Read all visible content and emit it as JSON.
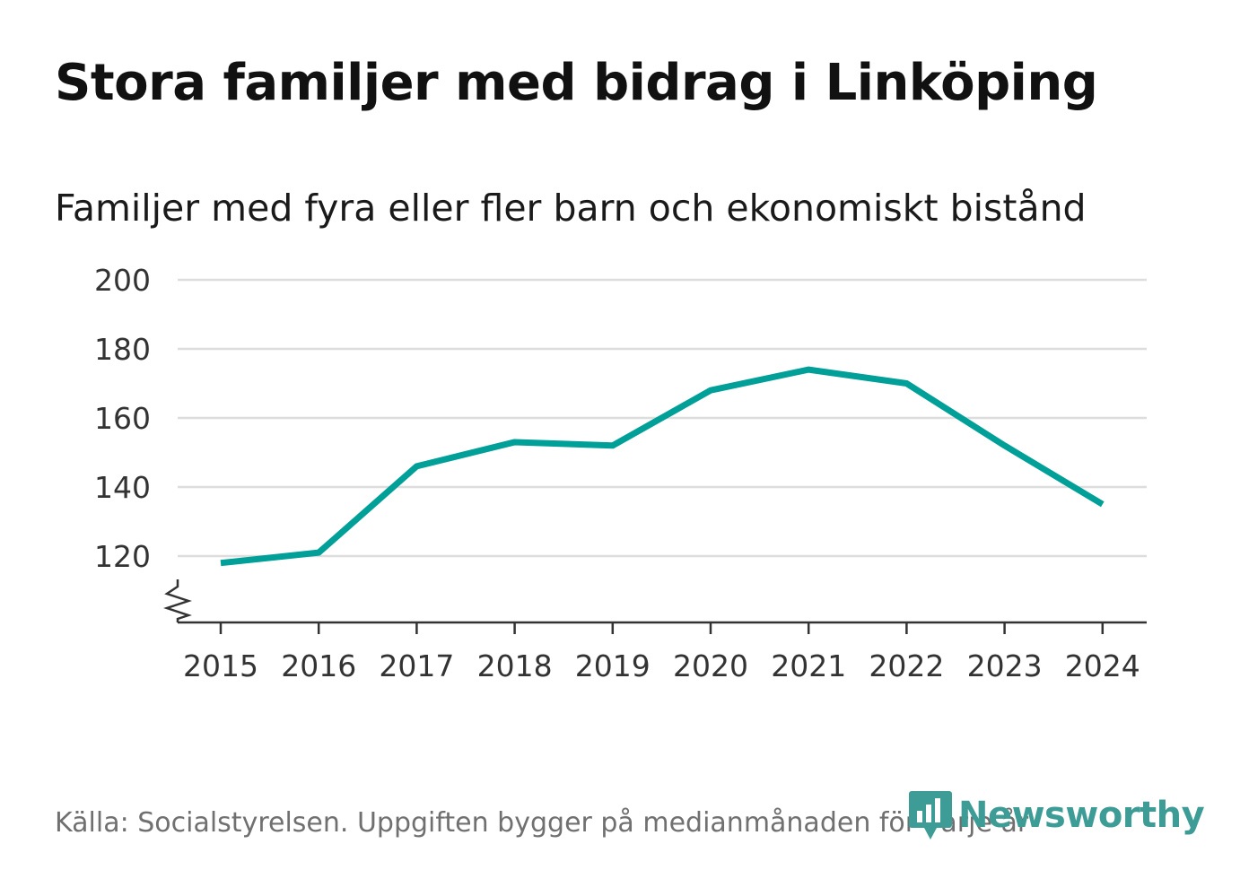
{
  "chart_data": {
    "type": "line",
    "title": "Stora familjer med bidrag i Linköping",
    "subtitle": "Familjer med fyra eller fler barn och ekonomiskt bistånd",
    "xlabel": "",
    "ylabel": "",
    "x": [
      "2015",
      "2016",
      "2017",
      "2018",
      "2019",
      "2020",
      "2021",
      "2022",
      "2023",
      "2024"
    ],
    "series": [
      {
        "name": "Familjer med fyra eller fler barn och ekonomiskt bistånd",
        "values": [
          118,
          121,
          146,
          153,
          152,
          168,
          174,
          170,
          152,
          135
        ]
      }
    ],
    "ylim": [
      100,
      200
    ],
    "yticks": [
      120,
      140,
      160,
      180,
      200
    ],
    "ytick_labels": [
      "120",
      "140",
      "160",
      "180",
      "200"
    ],
    "grid": true,
    "axis_break": true,
    "color": "#00a099"
  },
  "footer": {
    "source": "Källa: Socialstyrelsen. Uppgiften bygger på medianmånaden för varje år",
    "brand": "Newsworthy",
    "brand_icon": "newsworthy-logo-icon",
    "brand_color": "#3e9c96"
  }
}
